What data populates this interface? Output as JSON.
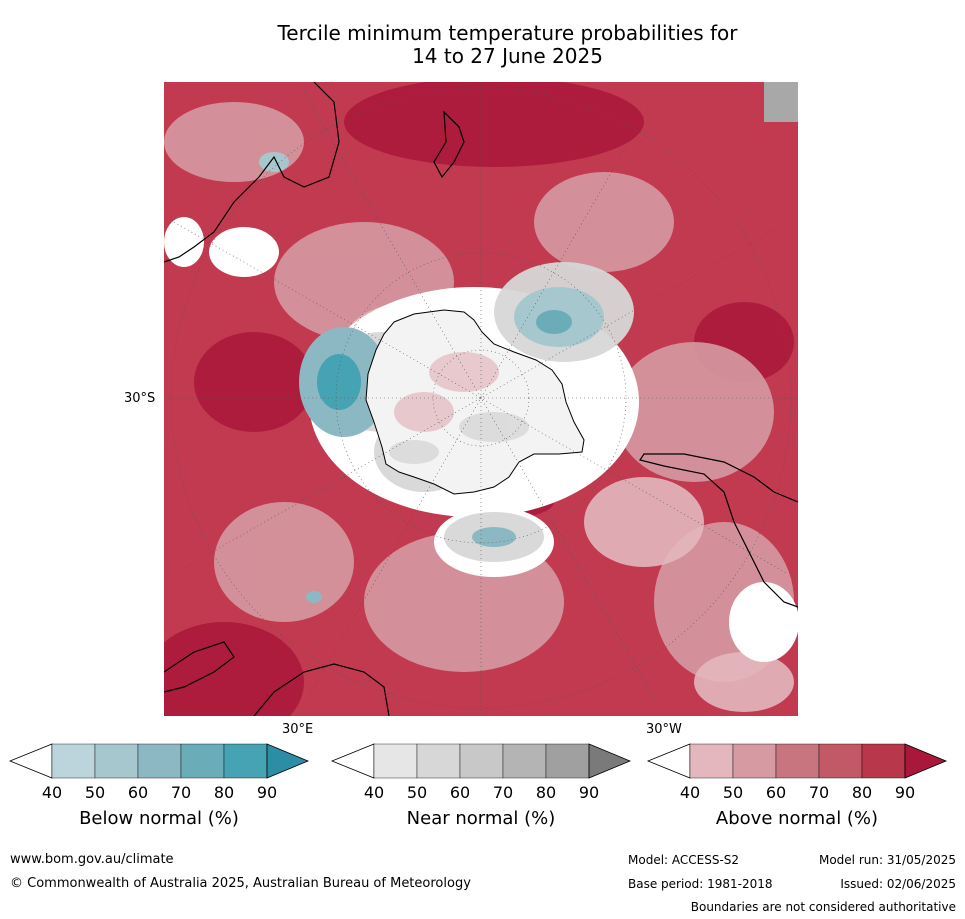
{
  "title": {
    "line1": "Tercile minimum temperature probabilities for",
    "line2": "14 to 27 June 2025"
  },
  "map": {
    "lat_label": "30°S",
    "lon_label_east": "30°E",
    "lon_label_west": "30°W",
    "projection": "south-polar-stereographic",
    "colors": {
      "ocean_default": "#c13a4f",
      "antarctica": "#ffffff",
      "coastline": "#000000",
      "graticule": "#555555"
    }
  },
  "colorbars": [
    {
      "name": "below",
      "label": "Below normal (%)",
      "ticks": [
        "40",
        "50",
        "60",
        "70",
        "80",
        "90"
      ],
      "colors": [
        "#bcd5dc",
        "#a7c7cf",
        "#8cb8c4",
        "#6aacb8",
        "#45a3b3",
        "#2b8ea4"
      ]
    },
    {
      "name": "near",
      "label": "Near normal (%)",
      "ticks": [
        "40",
        "50",
        "60",
        "70",
        "80",
        "90"
      ],
      "colors": [
        "#e6e6e6",
        "#d7d7d7",
        "#c8c8c8",
        "#b4b4b4",
        "#a0a0a0",
        "#7a7a7a"
      ]
    },
    {
      "name": "above",
      "label": "Above normal (%)",
      "ticks": [
        "40",
        "50",
        "60",
        "70",
        "80",
        "90"
      ],
      "colors": [
        "#e3b7bd",
        "#d69aa2",
        "#c97580",
        "#c15967",
        "#b9374b",
        "#a9173a"
      ]
    }
  ],
  "footer": {
    "website": "www.bom.gov.au/climate",
    "copyright": "© Commonwealth of Australia 2025, Australian Bureau of Meteorology",
    "model": "Model: ACCESS-S2",
    "model_run": "Model run: 31/05/2025",
    "base_period": "Base period: 1981-2018",
    "issued": "Issued: 02/06/2025",
    "disclaimer": "Boundaries are not considered authoritative"
  }
}
